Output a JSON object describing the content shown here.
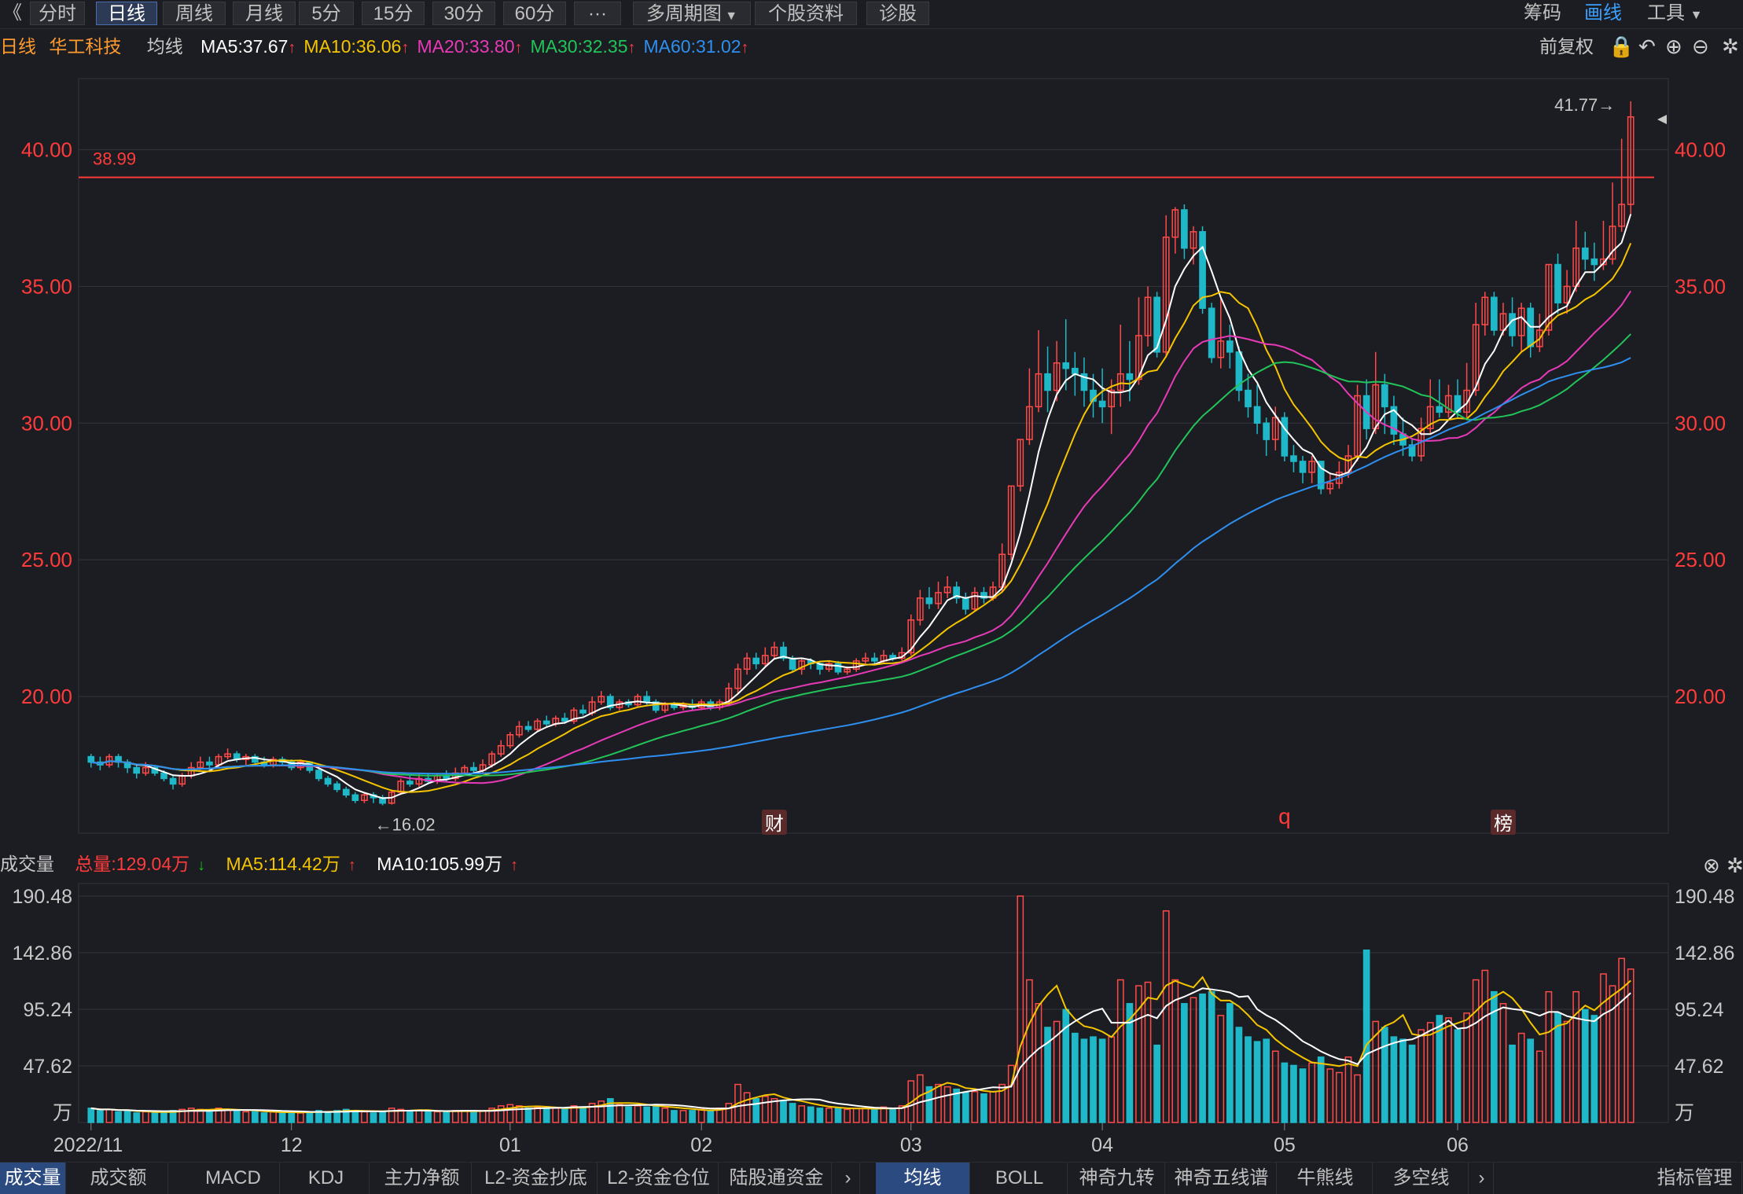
{
  "toolbar": {
    "back_icon": "《",
    "tabs": [
      "分时",
      "日线",
      "周线",
      "月线",
      "5分",
      "15分",
      "30分",
      "60分",
      "···",
      "多周期图",
      "个股资料",
      "诊股"
    ],
    "active": "日线",
    "right": [
      "筹码",
      "画线",
      "工具"
    ],
    "right_active": "画线"
  },
  "ma_bar": {
    "period": "日线",
    "stock": "华工科技",
    "label": "均线",
    "items": [
      {
        "text": "MA5:37.67",
        "color": "#ffffff"
      },
      {
        "text": "MA10:36.06",
        "color": "#f5c400"
      },
      {
        "text": "MA20:33.80",
        "color": "#e83ab8"
      },
      {
        "text": "MA30:32.35",
        "color": "#22c45a"
      },
      {
        "text": "MA60:31.02",
        "color": "#2e8ff0"
      }
    ],
    "fq": "前复权"
  },
  "vol_bar": {
    "label": "成交量",
    "total": "总量:129.04万",
    "ma5": "MA5:114.42万",
    "ma10": "MA10:105.99万"
  },
  "annotations": {
    "high": "41.77→",
    "low": "←16.02",
    "line_value": "38.99",
    "fin": "财",
    "q": "q",
    "bang": "榜"
  },
  "chart_data": {
    "type": "candlestick",
    "title": "华工科技 日线",
    "price_axis": {
      "ticks": [
        "40.00",
        "35.00",
        "30.00",
        "25.00",
        "20.00"
      ],
      "range": [
        15.0,
        42.6
      ]
    },
    "volume_axis": {
      "ticks": [
        "190.48",
        "142.86",
        "95.24",
        "47.62"
      ],
      "unit": "万",
      "range": [
        0,
        190.48
      ]
    },
    "x_ticks": [
      "2022/11",
      "12",
      "01",
      "02",
      "03",
      "04",
      "05",
      "06"
    ],
    "hline": 38.99,
    "candles": [
      [
        17.8,
        17.6,
        17.9,
        17.4,
        12
      ],
      [
        17.6,
        17.5,
        17.8,
        17.3,
        10
      ],
      [
        17.5,
        17.8,
        17.9,
        17.4,
        11
      ],
      [
        17.8,
        17.6,
        17.9,
        17.4,
        9
      ],
      [
        17.6,
        17.4,
        17.7,
        17.2,
        10
      ],
      [
        17.4,
        17.2,
        17.5,
        17.0,
        8
      ],
      [
        17.2,
        17.4,
        17.6,
        17.1,
        9
      ],
      [
        17.4,
        17.2,
        17.5,
        17.1,
        8
      ],
      [
        17.2,
        17.0,
        17.3,
        16.9,
        9
      ],
      [
        17.0,
        16.8,
        17.1,
        16.6,
        10
      ],
      [
        16.8,
        17.1,
        17.2,
        16.7,
        11
      ],
      [
        17.1,
        17.4,
        17.6,
        17.0,
        12
      ],
      [
        17.4,
        17.6,
        17.8,
        17.3,
        11
      ],
      [
        17.6,
        17.5,
        17.8,
        17.3,
        10
      ],
      [
        17.5,
        17.8,
        17.9,
        17.4,
        12
      ],
      [
        17.8,
        17.9,
        18.1,
        17.7,
        11
      ],
      [
        17.9,
        17.7,
        18.0,
        17.6,
        10
      ],
      [
        17.7,
        17.8,
        17.9,
        17.5,
        9
      ],
      [
        17.8,
        17.6,
        17.9,
        17.5,
        9
      ],
      [
        17.6,
        17.5,
        17.8,
        17.4,
        8
      ],
      [
        17.5,
        17.7,
        17.8,
        17.4,
        9
      ],
      [
        17.7,
        17.6,
        17.8,
        17.5,
        8
      ],
      [
        17.6,
        17.4,
        17.7,
        17.3,
        9
      ],
      [
        17.4,
        17.6,
        17.7,
        17.3,
        8
      ],
      [
        17.6,
        17.3,
        17.6,
        17.2,
        9
      ],
      [
        17.3,
        17.0,
        17.4,
        16.9,
        10
      ],
      [
        17.0,
        16.8,
        17.1,
        16.7,
        9
      ],
      [
        16.8,
        16.6,
        16.9,
        16.5,
        10
      ],
      [
        16.6,
        16.4,
        16.7,
        16.3,
        11
      ],
      [
        16.4,
        16.2,
        16.5,
        16.1,
        10
      ],
      [
        16.2,
        16.4,
        16.5,
        16.1,
        9
      ],
      [
        16.4,
        16.3,
        16.5,
        16.1,
        8
      ],
      [
        16.3,
        16.1,
        16.4,
        16.02,
        9
      ],
      [
        16.1,
        16.5,
        16.6,
        16.05,
        12
      ],
      [
        16.5,
        16.9,
        17.0,
        16.4,
        11
      ],
      [
        16.9,
        16.8,
        17.1,
        16.7,
        10
      ],
      [
        16.8,
        17.0,
        17.2,
        16.7,
        10
      ],
      [
        17.0,
        16.9,
        17.2,
        16.8,
        9
      ],
      [
        16.9,
        17.1,
        17.2,
        16.8,
        9
      ],
      [
        17.1,
        17.0,
        17.3,
        16.9,
        9
      ],
      [
        17.0,
        17.2,
        17.4,
        16.9,
        10
      ],
      [
        17.2,
        17.4,
        17.5,
        17.1,
        10
      ],
      [
        17.4,
        17.3,
        17.6,
        17.2,
        9
      ],
      [
        17.3,
        17.5,
        17.7,
        17.2,
        10
      ],
      [
        17.5,
        17.9,
        18.0,
        17.4,
        12
      ],
      [
        17.9,
        18.2,
        18.4,
        17.8,
        14
      ],
      [
        18.2,
        18.6,
        18.7,
        18.1,
        15
      ],
      [
        18.6,
        18.9,
        19.1,
        18.5,
        14
      ],
      [
        18.9,
        18.8,
        19.1,
        18.7,
        12
      ],
      [
        18.8,
        19.1,
        19.2,
        18.7,
        13
      ],
      [
        19.1,
        19.0,
        19.3,
        18.9,
        12
      ],
      [
        19.0,
        19.2,
        19.3,
        18.9,
        12
      ],
      [
        19.2,
        19.1,
        19.4,
        19.0,
        11
      ],
      [
        19.1,
        19.5,
        19.6,
        19.0,
        14
      ],
      [
        19.5,
        19.4,
        19.7,
        19.3,
        13
      ],
      [
        19.4,
        19.8,
        20.0,
        19.3,
        16
      ],
      [
        19.8,
        20.0,
        20.2,
        19.7,
        18
      ],
      [
        20.0,
        19.6,
        20.1,
        19.5,
        20
      ],
      [
        19.6,
        19.8,
        19.9,
        19.5,
        15
      ],
      [
        19.8,
        19.7,
        19.9,
        19.6,
        13
      ],
      [
        19.7,
        20.0,
        20.1,
        19.6,
        14
      ],
      [
        20.0,
        19.8,
        20.2,
        19.7,
        13
      ],
      [
        19.8,
        19.5,
        19.9,
        19.4,
        15
      ],
      [
        19.5,
        19.7,
        19.8,
        19.4,
        12
      ],
      [
        19.7,
        19.6,
        19.8,
        19.5,
        10
      ],
      [
        19.6,
        19.7,
        19.8,
        19.5,
        10
      ],
      [
        19.7,
        19.6,
        19.9,
        19.5,
        10
      ],
      [
        19.6,
        19.8,
        19.9,
        19.5,
        11
      ],
      [
        19.8,
        19.6,
        19.9,
        19.5,
        10
      ],
      [
        19.6,
        19.8,
        19.9,
        19.5,
        12
      ],
      [
        19.8,
        20.3,
        20.5,
        19.7,
        16
      ],
      [
        20.3,
        21.0,
        21.2,
        20.1,
        32
      ],
      [
        21.0,
        21.4,
        21.6,
        20.8,
        25
      ],
      [
        21.4,
        21.2,
        21.6,
        21.0,
        20
      ],
      [
        21.2,
        21.5,
        21.8,
        21.1,
        22
      ],
      [
        21.5,
        21.8,
        22.0,
        21.4,
        20
      ],
      [
        21.8,
        21.4,
        22.0,
        21.3,
        18
      ],
      [
        21.4,
        21.0,
        21.5,
        20.9,
        16
      ],
      [
        21.0,
        21.3,
        21.4,
        20.8,
        14
      ],
      [
        21.3,
        21.2,
        21.4,
        21.0,
        13
      ],
      [
        21.2,
        21.0,
        21.3,
        20.8,
        12
      ],
      [
        21.0,
        21.2,
        21.3,
        20.9,
        12
      ],
      [
        21.2,
        20.9,
        21.3,
        20.8,
        12
      ],
      [
        20.9,
        21.0,
        21.1,
        20.8,
        11
      ],
      [
        21.0,
        21.3,
        21.4,
        20.9,
        12
      ],
      [
        21.3,
        21.4,
        21.6,
        21.2,
        12
      ],
      [
        21.4,
        21.3,
        21.6,
        21.2,
        11
      ],
      [
        21.3,
        21.5,
        21.7,
        21.2,
        13
      ],
      [
        21.5,
        21.4,
        21.6,
        21.3,
        11
      ],
      [
        21.4,
        21.6,
        21.8,
        21.3,
        14
      ],
      [
        21.6,
        22.8,
        23.0,
        21.5,
        35
      ],
      [
        22.8,
        23.6,
        23.9,
        22.6,
        40
      ],
      [
        23.6,
        23.4,
        24.0,
        23.2,
        30
      ],
      [
        23.4,
        23.8,
        24.2,
        23.2,
        32
      ],
      [
        23.8,
        24.0,
        24.4,
        23.6,
        30
      ],
      [
        24.0,
        23.6,
        24.2,
        23.4,
        28
      ],
      [
        23.6,
        23.2,
        23.8,
        23.0,
        25
      ],
      [
        23.2,
        23.8,
        24.0,
        23.1,
        26
      ],
      [
        23.8,
        23.6,
        24.0,
        23.4,
        24
      ],
      [
        23.6,
        24.0,
        24.2,
        23.5,
        26
      ],
      [
        24.0,
        25.2,
        25.6,
        23.8,
        32
      ],
      [
        25.2,
        27.7,
        27.7,
        25.0,
        48
      ],
      [
        27.7,
        29.4,
        29.4,
        27.5,
        190.48
      ],
      [
        29.4,
        30.6,
        32.0,
        29.2,
        120
      ],
      [
        30.6,
        31.8,
        33.4,
        30.4,
        100
      ],
      [
        31.8,
        31.2,
        32.8,
        30.4,
        80
      ],
      [
        31.2,
        32.2,
        33.0,
        30.8,
        85
      ],
      [
        32.2,
        32.0,
        33.8,
        31.2,
        95
      ],
      [
        32.0,
        31.8,
        32.6,
        31.0,
        75
      ],
      [
        31.8,
        31.2,
        32.4,
        30.6,
        70
      ],
      [
        31.2,
        30.8,
        31.8,
        30.2,
        72
      ],
      [
        30.8,
        30.6,
        32.0,
        30.0,
        70
      ],
      [
        30.6,
        31.2,
        31.6,
        29.6,
        72
      ],
      [
        31.2,
        31.8,
        33.6,
        30.6,
        120
      ],
      [
        31.8,
        31.6,
        33.0,
        30.8,
        100
      ],
      [
        31.6,
        33.2,
        34.6,
        31.4,
        115
      ],
      [
        33.2,
        34.6,
        35.0,
        32.8,
        118
      ],
      [
        34.6,
        32.6,
        34.8,
        32.4,
        65
      ],
      [
        32.6,
        36.8,
        37.6,
        32.4,
        178
      ],
      [
        36.8,
        37.8,
        37.9,
        36.2,
        120
      ],
      [
        37.8,
        36.4,
        38.0,
        36.0,
        100
      ],
      [
        36.4,
        37.0,
        37.2,
        35.8,
        105
      ],
      [
        37.0,
        34.2,
        37.2,
        34.0,
        108
      ],
      [
        34.2,
        32.4,
        34.4,
        32.2,
        110
      ],
      [
        32.4,
        33.0,
        34.6,
        32.0,
        90
      ],
      [
        33.0,
        32.6,
        33.6,
        32.0,
        100
      ],
      [
        32.6,
        31.2,
        32.8,
        30.8,
        80
      ],
      [
        31.2,
        30.6,
        31.8,
        30.2,
        72
      ],
      [
        30.6,
        30.0,
        31.4,
        29.6,
        68
      ],
      [
        30.0,
        29.4,
        30.2,
        28.8,
        70
      ],
      [
        29.4,
        30.2,
        30.6,
        29.0,
        60
      ],
      [
        30.2,
        28.8,
        30.4,
        28.6,
        50
      ],
      [
        28.8,
        28.6,
        29.2,
        28.2,
        48
      ],
      [
        28.6,
        28.2,
        28.8,
        27.8,
        45
      ],
      [
        28.2,
        28.6,
        28.8,
        27.8,
        50
      ],
      [
        28.6,
        27.6,
        28.6,
        27.4,
        55
      ],
      [
        27.6,
        27.8,
        28.2,
        27.4,
        45
      ],
      [
        27.8,
        28.2,
        28.6,
        27.6,
        42
      ],
      [
        28.2,
        28.8,
        29.2,
        28.0,
        55
      ],
      [
        28.8,
        31.0,
        31.4,
        28.6,
        40
      ],
      [
        31.0,
        29.8,
        31.6,
        29.4,
        145
      ],
      [
        29.8,
        31.4,
        32.6,
        29.6,
        85
      ],
      [
        31.4,
        30.6,
        31.8,
        29.6,
        80
      ],
      [
        30.6,
        29.6,
        31.0,
        29.2,
        72
      ],
      [
        29.6,
        29.2,
        30.2,
        28.8,
        70
      ],
      [
        29.2,
        28.8,
        29.4,
        28.6,
        65
      ],
      [
        28.8,
        29.8,
        30.2,
        28.6,
        78
      ],
      [
        29.8,
        30.6,
        31.6,
        29.6,
        84
      ],
      [
        30.6,
        30.4,
        31.6,
        30.2,
        90
      ],
      [
        30.4,
        31.0,
        31.4,
        30.2,
        88
      ],
      [
        31.0,
        30.4,
        31.6,
        30.2,
        78
      ],
      [
        30.4,
        31.2,
        32.2,
        30.2,
        92
      ],
      [
        31.2,
        33.6,
        34.4,
        31.0,
        120
      ],
      [
        33.6,
        34.6,
        34.8,
        33.2,
        128
      ],
      [
        34.6,
        33.4,
        34.8,
        33.2,
        110
      ],
      [
        33.4,
        34.0,
        34.4,
        33.2,
        100
      ],
      [
        34.0,
        33.2,
        34.6,
        32.8,
        65
      ],
      [
        33.2,
        34.2,
        34.4,
        32.6,
        75
      ],
      [
        34.2,
        32.8,
        34.4,
        32.4,
        70
      ],
      [
        32.8,
        33.4,
        34.0,
        32.6,
        60
      ],
      [
        33.4,
        35.8,
        35.8,
        33.2,
        110
      ],
      [
        35.8,
        34.4,
        36.2,
        34.0,
        92
      ],
      [
        34.4,
        35.0,
        35.6,
        34.0,
        85
      ],
      [
        35.0,
        36.4,
        37.4,
        34.8,
        110
      ],
      [
        36.4,
        36.0,
        37.0,
        35.6,
        95
      ],
      [
        36.0,
        35.8,
        36.6,
        35.2,
        90
      ],
      [
        35.8,
        36.0,
        37.4,
        35.6,
        125
      ],
      [
        36.0,
        37.2,
        38.8,
        35.8,
        115
      ],
      [
        37.2,
        38.0,
        40.4,
        37.0,
        138
      ],
      [
        38.0,
        41.2,
        41.77,
        37.6,
        129.04
      ]
    ]
  }
}
